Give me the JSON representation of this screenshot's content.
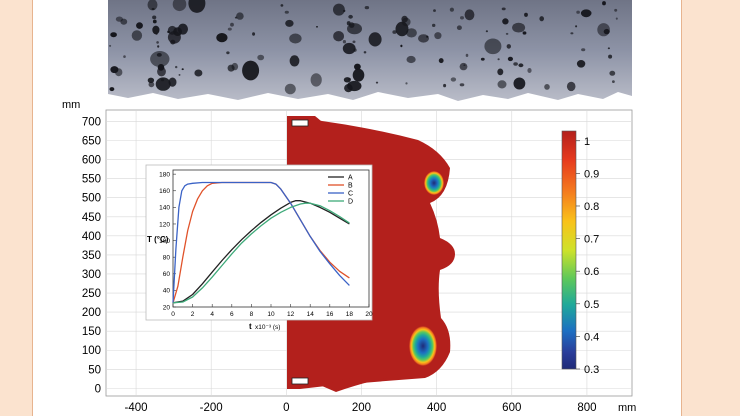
{
  "colors": {
    "page_background": "#fbe3cf",
    "frame_border": "#e7b48f",
    "heat_max": "#b3201c",
    "inset_axes": "#333333"
  },
  "photo": {
    "description_icon": "porous-rock-sample-photo"
  },
  "main_plot": {
    "x_unit": "mm",
    "y_unit": "mm",
    "x_ticks": [
      "-400",
      "-200",
      "0",
      "200",
      "400",
      "600",
      "800"
    ],
    "y_ticks": [
      "0",
      "50",
      "100",
      "150",
      "200",
      "250",
      "300",
      "350",
      "400",
      "450",
      "500",
      "550",
      "600",
      "650",
      "700"
    ],
    "xlim": [
      -480,
      920
    ],
    "ylim": [
      -20,
      730
    ],
    "grid": true
  },
  "colorbar": {
    "ticks": [
      "1",
      "0.9",
      "0.8",
      "0.7",
      "0.6",
      "0.5",
      "0.4",
      "0.3"
    ],
    "range": [
      0.3,
      1.03
    ],
    "colors": [
      "#b3201c",
      "#e63a1e",
      "#f4791f",
      "#f9c21a",
      "#cfe22a",
      "#5ec85a",
      "#1fa99a",
      "#1d6fc2",
      "#2a3d9a",
      "#1f2a78"
    ]
  },
  "chart_data": {
    "type": "line",
    "xlabel_main": "t",
    "xlabel_unit": "x10⁻³ (s)",
    "ylabel": "T (°C)",
    "xlim": [
      0,
      20
    ],
    "ylim": [
      20,
      185
    ],
    "x_ticks": [
      "0",
      "2",
      "4",
      "6",
      "8",
      "10",
      "12",
      "14",
      "16",
      "18",
      "20"
    ],
    "y_ticks": [
      "20",
      "40",
      "60",
      "80",
      "100",
      "120",
      "140",
      "160",
      "180"
    ],
    "legend_position": "top-right",
    "series": [
      {
        "name": "A",
        "color": "#222222",
        "x": [
          0,
          1,
          2,
          3,
          4,
          5,
          6,
          7,
          8,
          9,
          10,
          11,
          12,
          12.5,
          13,
          14,
          15,
          16,
          17,
          18
        ],
        "y": [
          25,
          27,
          35,
          48,
          62,
          76,
          89,
          101,
          112,
          122,
          131,
          139,
          146,
          148,
          148,
          145,
          140,
          134,
          127,
          120
        ]
      },
      {
        "name": "B",
        "color": "#e0522a",
        "x": [
          0,
          0.5,
          1,
          1.5,
          2,
          2.5,
          3,
          3.5,
          4,
          5,
          6,
          7,
          8,
          9,
          10,
          10.5,
          11,
          12,
          13,
          14,
          15,
          16,
          17,
          18
        ],
        "y": [
          25,
          45,
          80,
          112,
          135,
          150,
          160,
          166,
          169,
          170,
          170,
          170,
          170,
          170,
          170,
          168,
          162,
          145,
          125,
          105,
          88,
          74,
          63,
          55
        ]
      },
      {
        "name": "C",
        "color": "#3a62c6",
        "x": [
          0,
          0.3,
          0.6,
          0.9,
          1.2,
          1.5,
          2,
          3,
          4,
          6,
          8,
          10,
          10.5,
          11,
          12,
          13,
          14,
          15,
          16,
          17,
          18
        ],
        "y": [
          25,
          90,
          140,
          160,
          166,
          168,
          169,
          170,
          170,
          170,
          170,
          170,
          168,
          162,
          145,
          125,
          105,
          87,
          72,
          58,
          46
        ]
      },
      {
        "name": "D",
        "color": "#3faa7a",
        "x": [
          0,
          1,
          2,
          3,
          4,
          5,
          6,
          7,
          8,
          9,
          10,
          11,
          12,
          13,
          13.5,
          14,
          15,
          16,
          17,
          18
        ],
        "y": [
          25,
          26,
          32,
          43,
          56,
          70,
          84,
          97,
          108,
          118,
          127,
          134,
          140,
          144,
          145,
          145,
          142,
          136,
          129,
          121
        ]
      }
    ]
  }
}
